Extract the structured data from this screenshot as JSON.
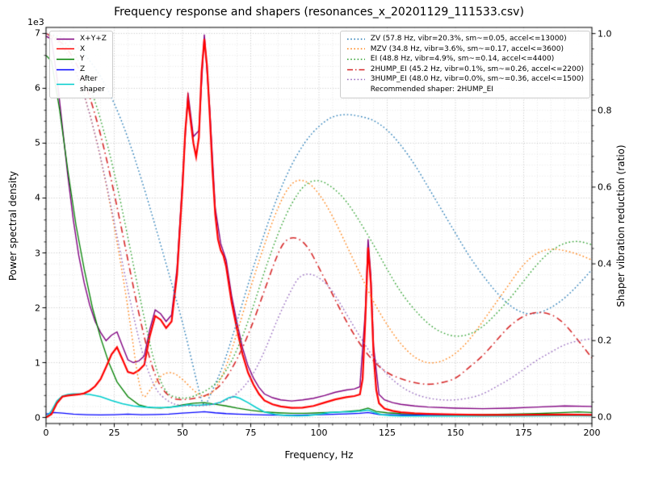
{
  "chart_data": {
    "type": "line",
    "title": "Frequency response and shapers (resonances_x_20201129_111533.csv)",
    "xlabel": "Frequency, Hz",
    "ylabel_left": "Power spectral density",
    "ylabel_right": "Shaper vibration reduction (ratio)",
    "y_left_offset_label": "1e3",
    "x_range": [
      0,
      200
    ],
    "y_left_range": [
      0,
      7000
    ],
    "y_right_range": [
      0,
      1.0
    ],
    "y_left_view": [
      -110,
      7110
    ],
    "y_right_view": [
      -0.016,
      1.016
    ],
    "x_minor_step": 5,
    "y_left_minor_step": 200,
    "y_right_minor_step": 0.04,
    "grid": {
      "on": true,
      "major_color": "#bbbbbb",
      "minor_color": "#dedede"
    },
    "x_major_ticks": [
      {
        "v": 0,
        "label": "0"
      },
      {
        "v": 25,
        "label": "25"
      },
      {
        "v": 50,
        "label": "50"
      },
      {
        "v": 75,
        "label": "75"
      },
      {
        "v": 100,
        "label": "100"
      },
      {
        "v": 125,
        "label": "125"
      },
      {
        "v": 150,
        "label": "150"
      },
      {
        "v": 175,
        "label": "175"
      },
      {
        "v": 200,
        "label": "200"
      }
    ],
    "y_left_ticks": [
      {
        "v": 0,
        "label": "0"
      },
      {
        "v": 1000,
        "label": "1"
      },
      {
        "v": 2000,
        "label": "2"
      },
      {
        "v": 3000,
        "label": "3"
      },
      {
        "v": 4000,
        "label": "4"
      },
      {
        "v": 5000,
        "label": "5"
      },
      {
        "v": 6000,
        "label": "6"
      },
      {
        "v": 7000,
        "label": "7"
      }
    ],
    "y_right_ticks": [
      {
        "v": 0,
        "label": "0.0"
      },
      {
        "v": 0.2,
        "label": "0.2"
      },
      {
        "v": 0.4,
        "label": "0.4"
      },
      {
        "v": 0.6,
        "label": "0.6"
      },
      {
        "v": 0.8,
        "label": "0.8"
      },
      {
        "v": 1.0,
        "label": "1.0"
      }
    ],
    "legend_left": [
      {
        "label": "X+Y+Z",
        "color": "#800080",
        "style": "solid"
      },
      {
        "label": "X",
        "color": "#ff0000",
        "style": "solid"
      },
      {
        "label": "Y",
        "color": "#008000",
        "style": "solid"
      },
      {
        "label": "Z",
        "color": "#0000ff",
        "style": "solid"
      },
      {
        "label": "After\nshaper",
        "color": "#00cdcd",
        "style": "solid"
      }
    ],
    "legend_right": [
      {
        "label": "ZV (57.8 Hz, vibr=20.3%, sm~=0.05, accel<=13000)",
        "color": "#1f77b4",
        "style": "dotted"
      },
      {
        "label": "MZV (34.8 Hz, vibr=3.6%, sm~=0.17, accel<=3600)",
        "color": "#ff7f0e",
        "style": "dotted"
      },
      {
        "label": "EI (48.8 Hz, vibr=4.9%, sm~=0.14, accel<=4400)",
        "color": "#2ca02c",
        "style": "dotted"
      },
      {
        "label": "2HUMP_EI (45.2 Hz, vibr=0.1%, sm~=0.26, accel<=2200)",
        "color": "#d62728",
        "style": "dashdot"
      },
      {
        "label": "3HUMP_EI (48.0 Hz, vibr=0.0%, sm~=0.36, accel<=1500)",
        "color": "#9467bd",
        "style": "dotted"
      },
      {
        "label": "Recommended shaper: 2HUMP_EI",
        "color": "",
        "style": "none"
      }
    ],
    "series": [
      {
        "name": "X+Y+Z",
        "axis": "left",
        "color": "#800080",
        "style": "solid",
        "width": 1.4,
        "smooth": false,
        "x": [
          0,
          2,
          4,
          6,
          8,
          10,
          12,
          14,
          16,
          18,
          20,
          22,
          24,
          26,
          28,
          30,
          32,
          34,
          36,
          38,
          40,
          42,
          44,
          46,
          48,
          50,
          52,
          54,
          56,
          58,
          60,
          62,
          64,
          66,
          68,
          70,
          72,
          74,
          76,
          78,
          80,
          83,
          86,
          90,
          94,
          98,
          102,
          106,
          110,
          113,
          115,
          117,
          118,
          119,
          120,
          122,
          124,
          127,
          130,
          135,
          140,
          150,
          160,
          170,
          180,
          190,
          200
        ],
        "y": [
          6950,
          6900,
          6200,
          5300,
          4400,
          3600,
          2950,
          2450,
          2050,
          1750,
          1550,
          1400,
          1500,
          1560,
          1300,
          1050,
          1000,
          1030,
          1120,
          1600,
          1960,
          1890,
          1750,
          1870,
          2720,
          4320,
          5920,
          5120,
          5230,
          6980,
          5620,
          3820,
          3170,
          2870,
          2220,
          1720,
          1270,
          940,
          720,
          550,
          430,
          360,
          320,
          300,
          320,
          350,
          400,
          460,
          500,
          520,
          560,
          1950,
          3250,
          2600,
          1300,
          420,
          320,
          270,
          240,
          210,
          190,
          170,
          160,
          170,
          190,
          210,
          200
        ]
      },
      {
        "name": "Y",
        "axis": "left",
        "color": "#008000",
        "style": "solid",
        "width": 1.3,
        "smooth": false,
        "x": [
          0,
          2,
          5,
          8,
          11,
          14,
          17,
          20,
          23,
          26,
          30,
          34,
          38,
          42,
          46,
          50,
          54,
          58,
          62,
          66,
          70,
          75,
          80,
          85,
          90,
          95,
          100,
          105,
          110,
          115,
          118,
          121,
          125,
          130,
          140,
          150,
          160,
          170,
          180,
          190,
          195,
          200
        ],
        "y": [
          6600,
          6500,
          5600,
          4500,
          3500,
          2700,
          2000,
          1450,
          1000,
          650,
          380,
          230,
          180,
          170,
          190,
          230,
          260,
          270,
          240,
          210,
          170,
          130,
          100,
          85,
          75,
          75,
          85,
          95,
          110,
          130,
          170,
          110,
          85,
          70,
          60,
          55,
          55,
          60,
          70,
          90,
          100,
          90
        ]
      },
      {
        "name": "Z",
        "axis": "left",
        "color": "#0000ff",
        "style": "solid",
        "width": 1.3,
        "smooth": false,
        "x": [
          0,
          3,
          6,
          10,
          15,
          20,
          25,
          30,
          35,
          40,
          45,
          50,
          55,
          58,
          62,
          66,
          70,
          80,
          90,
          100,
          110,
          115,
          118,
          122,
          130,
          140,
          150,
          160,
          170,
          180,
          190,
          200
        ],
        "y": [
          60,
          90,
          80,
          60,
          50,
          45,
          50,
          60,
          50,
          55,
          60,
          80,
          95,
          105,
          85,
          70,
          60,
          45,
          40,
          50,
          65,
          75,
          90,
          55,
          45,
          40,
          40,
          40,
          40,
          45,
          50,
          45
        ]
      },
      {
        "name": "After shaper",
        "axis": "left",
        "color": "#00cdcd",
        "style": "solid",
        "width": 1.6,
        "smooth": false,
        "x": [
          0,
          2,
          4,
          6,
          8,
          10,
          13,
          16,
          20,
          24,
          28,
          32,
          36,
          40,
          44,
          48,
          52,
          55,
          58,
          61,
          64,
          67,
          69,
          71,
          74,
          77,
          80,
          84,
          88,
          92,
          96,
          100,
          104,
          108,
          112,
          115,
          118,
          120,
          123,
          126,
          130,
          140,
          150,
          160,
          170,
          180,
          190,
          200
        ],
        "y": [
          0,
          120,
          300,
          390,
          420,
          430,
          430,
          420,
          380,
          310,
          250,
          210,
          190,
          180,
          180,
          200,
          230,
          220,
          230,
          240,
          280,
          360,
          380,
          350,
          270,
          180,
          100,
          55,
          35,
          30,
          35,
          55,
          90,
          100,
          105,
          115,
          135,
          95,
          50,
          35,
          28,
          25,
          25,
          25,
          25,
          30,
          35,
          30
        ]
      },
      {
        "name": "X",
        "axis": "left",
        "color": "#ff0000",
        "style": "solid",
        "width": 2.2,
        "smooth": false,
        "x": [
          0,
          2,
          4,
          6,
          8,
          10,
          12,
          14,
          16,
          18,
          20,
          22,
          24,
          26,
          28,
          30,
          32,
          34,
          36,
          38,
          40,
          42,
          44,
          46,
          48,
          50,
          51,
          52,
          53,
          54,
          55,
          56,
          57,
          58,
          59,
          60,
          61,
          62,
          63,
          64,
          65,
          66,
          68,
          70,
          72,
          74,
          76,
          78,
          80,
          83,
          86,
          90,
          94,
          98,
          102,
          106,
          110,
          113,
          115,
          116,
          117,
          118,
          119,
          120,
          121,
          122,
          124,
          127,
          130,
          135,
          140,
          150,
          160,
          170,
          180,
          190,
          200
        ],
        "y": [
          0,
          60,
          260,
          380,
          400,
          410,
          420,
          440,
          490,
          570,
          700,
          920,
          1150,
          1280,
          1060,
          830,
          800,
          860,
          960,
          1480,
          1850,
          1780,
          1630,
          1750,
          2600,
          4200,
          5200,
          5800,
          5400,
          5000,
          4750,
          5100,
          6300,
          6900,
          6400,
          5500,
          4500,
          3700,
          3250,
          3050,
          2950,
          2750,
          2100,
          1600,
          1150,
          820,
          600,
          430,
          310,
          240,
          200,
          175,
          180,
          210,
          270,
          330,
          370,
          390,
          420,
          700,
          1800,
          3100,
          2450,
          1150,
          500,
          260,
          160,
          120,
          95,
          75,
          65,
          55,
          45,
          45,
          50,
          55,
          45
        ]
      },
      {
        "name": "ZV",
        "axis": "right",
        "color": "#1f77b4",
        "style": "dotted",
        "width": 1.4,
        "smooth": true,
        "x": [
          0,
          5,
          10,
          15,
          20,
          25,
          30,
          35,
          40,
          45,
          50,
          55,
          57.8,
          60,
          65,
          70,
          75,
          80,
          85,
          90,
          95,
          100,
          105,
          110,
          115,
          120,
          125,
          130,
          135,
          140,
          145,
          150,
          155,
          160,
          165,
          170,
          175,
          180,
          185,
          190,
          195,
          200
        ],
        "y": [
          1.0,
          0.995,
          0.975,
          0.94,
          0.89,
          0.82,
          0.73,
          0.62,
          0.5,
          0.375,
          0.25,
          0.1,
          0.02,
          0.055,
          0.135,
          0.25,
          0.37,
          0.48,
          0.58,
          0.66,
          0.72,
          0.76,
          0.785,
          0.79,
          0.785,
          0.775,
          0.75,
          0.71,
          0.66,
          0.6,
          0.54,
          0.48,
          0.42,
          0.37,
          0.325,
          0.29,
          0.27,
          0.27,
          0.285,
          0.31,
          0.345,
          0.385
        ]
      },
      {
        "name": "MZV",
        "axis": "right",
        "color": "#ff7f0e",
        "style": "dotted",
        "width": 1.4,
        "smooth": true,
        "x": [
          0,
          5,
          10,
          15,
          20,
          25,
          30,
          34.8,
          38,
          42,
          46,
          50,
          54,
          58,
          62,
          66,
          70,
          75,
          80,
          85,
          90,
          95,
          100,
          105,
          110,
          115,
          120,
          125,
          130,
          135,
          140,
          145,
          150,
          155,
          160,
          165,
          170,
          175,
          180,
          185,
          190,
          195,
          200
        ],
        "y": [
          1.0,
          0.98,
          0.92,
          0.82,
          0.68,
          0.5,
          0.29,
          0.04,
          0.07,
          0.11,
          0.12,
          0.1,
          0.07,
          0.05,
          0.07,
          0.13,
          0.22,
          0.34,
          0.45,
          0.55,
          0.615,
          0.62,
          0.585,
          0.525,
          0.45,
          0.375,
          0.3,
          0.24,
          0.19,
          0.155,
          0.14,
          0.145,
          0.165,
          0.2,
          0.25,
          0.3,
          0.35,
          0.4,
          0.43,
          0.44,
          0.435,
          0.425,
          0.41
        ]
      },
      {
        "name": "EI",
        "axis": "right",
        "color": "#2ca02c",
        "style": "dotted",
        "width": 1.4,
        "smooth": true,
        "x": [
          0,
          5,
          10,
          15,
          20,
          25,
          30,
          35,
          40,
          44,
          48.8,
          52,
          56,
          60,
          64,
          68,
          72,
          76,
          80,
          85,
          90,
          95,
          100,
          105,
          110,
          115,
          120,
          125,
          130,
          135,
          140,
          145,
          150,
          155,
          160,
          165,
          170,
          175,
          180,
          185,
          190,
          195,
          200
        ],
        "y": [
          1.0,
          0.99,
          0.955,
          0.885,
          0.78,
          0.64,
          0.47,
          0.29,
          0.13,
          0.06,
          0.05,
          0.05,
          0.06,
          0.075,
          0.1,
          0.145,
          0.21,
          0.29,
          0.38,
          0.48,
          0.56,
          0.61,
          0.62,
          0.6,
          0.565,
          0.51,
          0.45,
          0.385,
          0.325,
          0.28,
          0.243,
          0.22,
          0.21,
          0.215,
          0.235,
          0.27,
          0.31,
          0.355,
          0.4,
          0.435,
          0.455,
          0.46,
          0.45
        ]
      },
      {
        "name": "2HUMP_EI",
        "axis": "right",
        "color": "#d62728",
        "style": "dashdot",
        "width": 1.6,
        "smooth": true,
        "x": [
          0,
          5,
          10,
          15,
          20,
          25,
          30,
          35,
          40,
          45.2,
          50,
          55,
          60,
          65,
          70,
          75,
          80,
          85,
          88,
          92,
          96,
          100,
          105,
          110,
          115,
          120,
          125,
          130,
          135,
          140,
          145,
          150,
          155,
          160,
          165,
          170,
          175,
          180,
          185,
          190,
          195,
          200
        ],
        "y": [
          1.0,
          0.985,
          0.94,
          0.86,
          0.74,
          0.585,
          0.41,
          0.235,
          0.1,
          0.05,
          0.045,
          0.05,
          0.06,
          0.09,
          0.15,
          0.23,
          0.33,
          0.43,
          0.465,
          0.47,
          0.445,
          0.39,
          0.32,
          0.25,
          0.19,
          0.145,
          0.115,
          0.1,
          0.09,
          0.085,
          0.09,
          0.1,
          0.13,
          0.16,
          0.2,
          0.24,
          0.265,
          0.275,
          0.27,
          0.245,
          0.2,
          0.155
        ]
      },
      {
        "name": "3HUMP_EI",
        "axis": "right",
        "color": "#9467bd",
        "style": "dotted",
        "width": 1.4,
        "smooth": true,
        "x": [
          0,
          5,
          10,
          15,
          20,
          25,
          30,
          35,
          40,
          45,
          48,
          52,
          56,
          60,
          65,
          70,
          75,
          80,
          85,
          90,
          93,
          97,
          101,
          105,
          110,
          115,
          120,
          125,
          130,
          135,
          140,
          145,
          150,
          155,
          160,
          165,
          170,
          175,
          180,
          185,
          190,
          195,
          200
        ],
        "y": [
          1.0,
          0.98,
          0.92,
          0.82,
          0.68,
          0.51,
          0.33,
          0.17,
          0.07,
          0.04,
          0.032,
          0.03,
          0.03,
          0.032,
          0.04,
          0.06,
          0.1,
          0.17,
          0.26,
          0.335,
          0.37,
          0.375,
          0.36,
          0.33,
          0.27,
          0.21,
          0.155,
          0.11,
          0.08,
          0.06,
          0.05,
          0.045,
          0.045,
          0.05,
          0.06,
          0.08,
          0.1,
          0.125,
          0.15,
          0.17,
          0.19,
          0.2,
          0.205
        ]
      }
    ]
  }
}
